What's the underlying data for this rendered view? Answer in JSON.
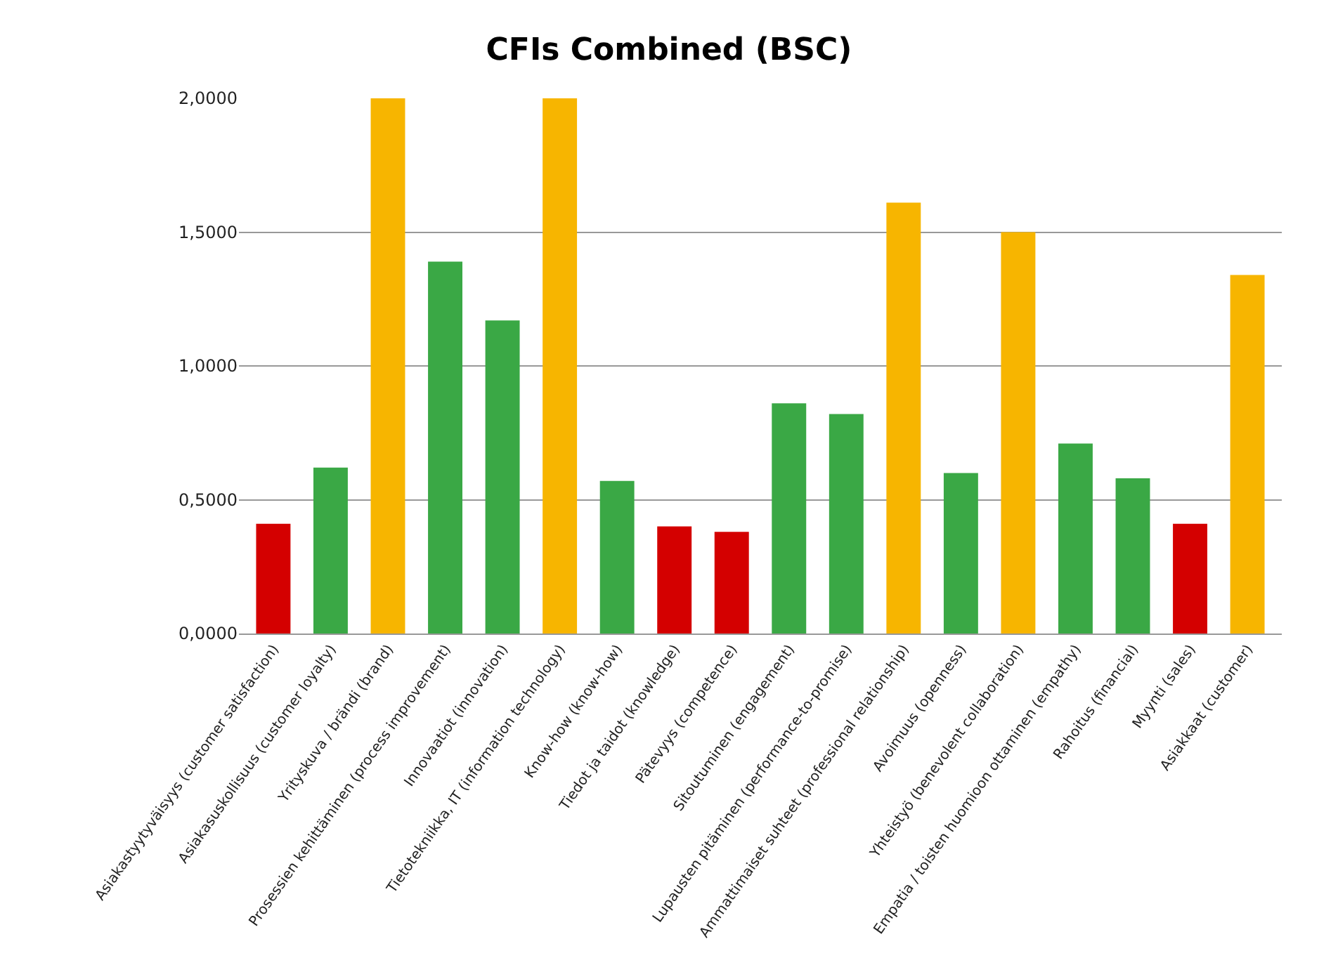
{
  "chart_data": {
    "type": "bar",
    "title": "CFIs Combined (BSC)",
    "categories": [
      "Asiakastyytyväisyys (customer satisfaction)",
      "Asiakasuskollisuus (customer loyalty)",
      "Yrityskuva / brändi (brand)",
      "Prosessien kehittäminen (process improvement)",
      "Innovaatiot (innovation)",
      "Tietotekniikka, IT (information technology)",
      "Know-how (know-how)",
      "Tiedot ja taidot (knowledge)",
      "Pätevyys (competence)",
      "Sitoutuminen (engagement)",
      "Lupausten pitäminen (performance-to-promise)",
      "Ammattimaiset suhteet (professional relationship)",
      "Avoimuus (openness)",
      "Yhteistyö (benevolent collaboration)",
      "Empatia / toisten huomioon ottaminen (empathy)",
      "Rahoitus (financial)",
      "Myynti (sales)",
      "Asiakkaat (customer)"
    ],
    "values": [
      0.41,
      0.62,
      2.0,
      1.39,
      1.17,
      2.0,
      0.57,
      0.4,
      0.38,
      0.86,
      0.82,
      1.61,
      0.6,
      1.5,
      0.71,
      0.58,
      0.41,
      1.34
    ],
    "colors": [
      "#d40000",
      "#3aa845",
      "#f7b500",
      "#3aa845",
      "#3aa845",
      "#f7b500",
      "#3aa845",
      "#d40000",
      "#d40000",
      "#3aa845",
      "#3aa845",
      "#f7b500",
      "#3aa845",
      "#f7b500",
      "#3aa845",
      "#3aa845",
      "#d40000",
      "#f7b500"
    ],
    "ylim": [
      0,
      2.0
    ],
    "yticks": [
      {
        "value": 0,
        "label": "0,0000"
      },
      {
        "value": 0.5,
        "label": "0,5000"
      },
      {
        "value": 1,
        "label": "1,0000"
      },
      {
        "value": 1.5,
        "label": "1,5000"
      },
      {
        "value": 2,
        "label": "2,0000"
      }
    ],
    "grid": "y"
  }
}
